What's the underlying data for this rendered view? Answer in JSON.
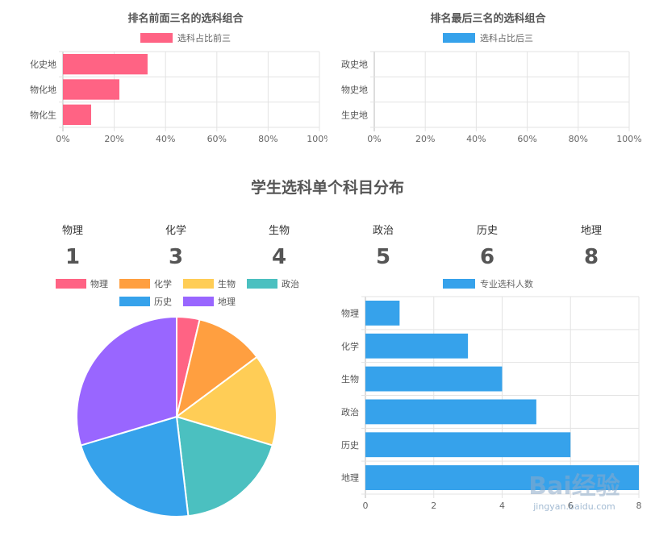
{
  "chart_data": [
    {
      "type": "bar",
      "orientation": "horizontal",
      "title": "排名前面三名的选科组合",
      "legend": "选科占比前三",
      "color": "#ff6384",
      "categories": [
        "化史地",
        "物化地",
        "物化生"
      ],
      "values": [
        33,
        22,
        11
      ],
      "xlim": [
        0,
        100
      ],
      "xticks": [
        "0%",
        "20%",
        "40%",
        "60%",
        "80%",
        "100%"
      ]
    },
    {
      "type": "bar",
      "orientation": "horizontal",
      "title": "排名最后三名的选科组合",
      "legend": "选科占比后三",
      "color": "#36a2eb",
      "categories": [
        "政史地",
        "物史地",
        "生史地"
      ],
      "values": [
        0,
        0,
        0
      ],
      "xlim": [
        0,
        100
      ],
      "xticks": [
        "0%",
        "20%",
        "40%",
        "60%",
        "80%",
        "100%"
      ]
    },
    {
      "type": "pie",
      "labels": [
        "物理",
        "化学",
        "生物",
        "政治",
        "历史",
        "地理"
      ],
      "values": [
        1,
        3,
        4,
        5,
        6,
        8
      ],
      "colors": [
        "#ff6384",
        "#ff9f40",
        "#ffcd56",
        "#4bc0c0",
        "#36a2eb",
        "#9966ff"
      ]
    },
    {
      "type": "bar",
      "orientation": "horizontal",
      "legend": "专业选科人数",
      "color": "#36a2eb",
      "categories": [
        "物理",
        "化学",
        "生物",
        "政治",
        "历史",
        "地理"
      ],
      "values": [
        1,
        3,
        4,
        5,
        6,
        8
      ],
      "xlim": [
        0,
        8
      ],
      "xticks": [
        "0",
        "2",
        "4",
        "6",
        "8"
      ]
    }
  ],
  "section": {
    "title": "学生选科单个科目分布",
    "stats": [
      {
        "label": "物理",
        "value": "1"
      },
      {
        "label": "化学",
        "value": "3"
      },
      {
        "label": "生物",
        "value": "4"
      },
      {
        "label": "政治",
        "value": "5"
      },
      {
        "label": "历史",
        "value": "6"
      },
      {
        "label": "地理",
        "value": "8"
      }
    ]
  },
  "watermark": {
    "text": "Bai经验",
    "sub": "jingyan.baidu.com"
  }
}
